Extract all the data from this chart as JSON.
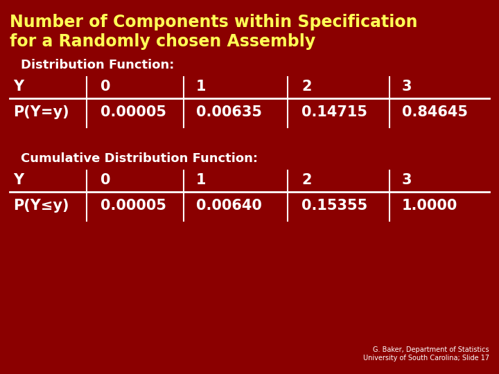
{
  "title_line1": "Number of Components within Specification",
  "title_line2": "for a Randomly chosen Assembly",
  "title_color": "#FFFF55",
  "bg_color": "#8B0000",
  "text_color": "#FFFFFF",
  "section1_label": "Distribution Function:",
  "section2_label": "Cumulative Distribution Function:",
  "table1_headers": [
    "Y",
    "0",
    "1",
    "2",
    "3"
  ],
  "table1_row": [
    "P(Y=y)",
    "0.00005",
    "0.00635",
    "0.14715",
    "0.84645"
  ],
  "table2_headers": [
    "Y",
    "0",
    "1",
    "2",
    "3"
  ],
  "table2_row": [
    "P(Y≤y)",
    "0.00005",
    "0.00640",
    "0.15355",
    "1.0000"
  ],
  "footer": "G. Baker, Department of Statistics\nUniversity of South Carolina; Slide 17",
  "footer_color": "#FFFFFF",
  "title_fontsize": 17,
  "section_fontsize": 13,
  "table_fontsize": 15
}
